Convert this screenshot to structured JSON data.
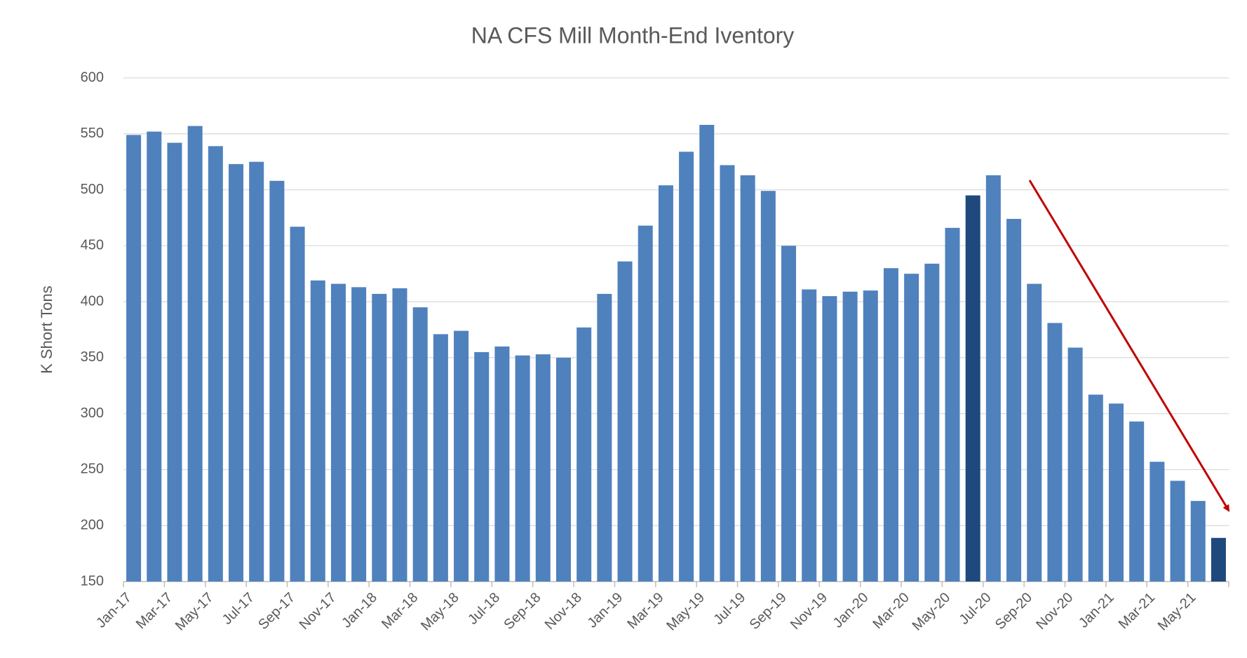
{
  "chart_data": {
    "type": "bar",
    "title": "NA CFS Mill Month-End Iventory",
    "y_label": "K Short Tons",
    "categories": [
      "Jan-17",
      null,
      "Mar-17",
      null,
      "May-17",
      null,
      "Jul-17",
      null,
      "Sep-17",
      null,
      "Nov-17",
      null,
      "Jan-18",
      null,
      "Mar-18",
      null,
      "May-18",
      null,
      "Jul-18",
      null,
      "Sep-18",
      null,
      "Nov-18",
      null,
      "Jan-19",
      null,
      "Mar-19",
      null,
      "May-19",
      null,
      "Jul-19",
      null,
      "Sep-19",
      null,
      "Nov-19",
      null,
      "Jan-20",
      null,
      "Mar-20",
      null,
      "May-20",
      null,
      "Jul-20",
      null,
      "Sep-20",
      null,
      "Nov-20",
      null,
      "Jan-21",
      null,
      "Mar-21",
      null,
      "May-21",
      null
    ],
    "values": [
      549,
      552,
      542,
      557,
      539,
      523,
      525,
      508,
      467,
      419,
      416,
      413,
      407,
      412,
      395,
      371,
      374,
      355,
      360,
      352,
      353,
      350,
      377,
      407,
      436,
      468,
      504,
      534,
      558,
      522,
      513,
      499,
      450,
      411,
      405,
      409,
      410,
      430,
      425,
      434,
      466,
      495,
      513,
      474,
      416,
      381,
      359,
      317,
      309,
      293,
      257,
      240,
      222,
      189
    ],
    "colors": [
      "#4f81bd",
      "#4f81bd",
      "#4f81bd",
      "#4f81bd",
      "#4f81bd",
      "#4f81bd",
      "#4f81bd",
      "#4f81bd",
      "#4f81bd",
      "#4f81bd",
      "#4f81bd",
      "#4f81bd",
      "#4f81bd",
      "#4f81bd",
      "#4f81bd",
      "#4f81bd",
      "#4f81bd",
      "#4f81bd",
      "#4f81bd",
      "#4f81bd",
      "#4f81bd",
      "#4f81bd",
      "#4f81bd",
      "#4f81bd",
      "#4f81bd",
      "#4f81bd",
      "#4f81bd",
      "#4f81bd",
      "#4f81bd",
      "#4f81bd",
      "#4f81bd",
      "#4f81bd",
      "#4f81bd",
      "#4f81bd",
      "#4f81bd",
      "#4f81bd",
      "#4f81bd",
      "#4f81bd",
      "#4f81bd",
      "#4f81bd",
      "#4f81bd",
      "#1f497d",
      "#4f81bd",
      "#4f81bd",
      "#4f81bd",
      "#4f81bd",
      "#4f81bd",
      "#4f81bd",
      "#4f81bd",
      "#4f81bd",
      "#4f81bd",
      "#4f81bd",
      "#4f81bd",
      "#1f497d"
    ],
    "ylim": [
      150,
      600
    ],
    "yticks": [
      150,
      200,
      250,
      300,
      350,
      400,
      450,
      500,
      550,
      600
    ],
    "grid": true
  }
}
